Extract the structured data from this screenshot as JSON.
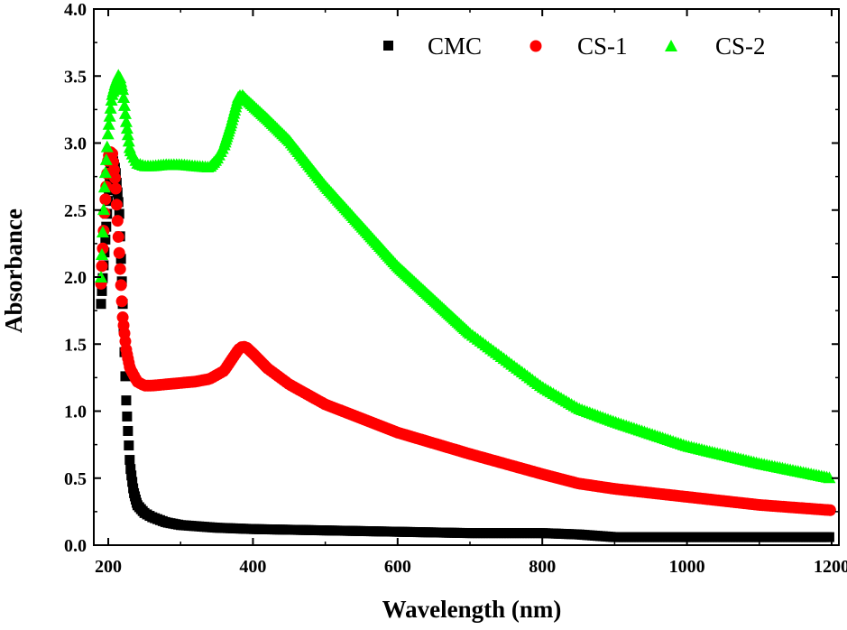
{
  "chart_data": {
    "type": "scatter",
    "title": "",
    "xlabel": "Wavelength (nm)",
    "ylabel": "Absorbance",
    "xlim": [
      180,
      1210
    ],
    "ylim": [
      0,
      4.0
    ],
    "x_ticks": [
      200,
      400,
      600,
      800,
      1000,
      1200
    ],
    "x_tick_labels": [
      "200",
      "400",
      "600",
      "800",
      "1000",
      "1200"
    ],
    "y_ticks": [
      0,
      0.5,
      1.0,
      1.5,
      2.0,
      2.5,
      3.0,
      3.5,
      4.0
    ],
    "y_tick_labels": [
      "0.0",
      "0.5",
      "1.0",
      "1.5",
      "2.0",
      "2.5",
      "3.0",
      "3.5",
      "4.0"
    ],
    "legend_position": "top-right",
    "grid": false,
    "series": [
      {
        "name": "CMC",
        "marker": "square",
        "color": "#000000",
        "x": [
          190,
          195,
          200,
          205,
          210,
          215,
          220,
          225,
          230,
          235,
          240,
          250,
          260,
          280,
          300,
          350,
          400,
          500,
          600,
          700,
          800,
          850,
          900,
          1000,
          1100,
          1200
        ],
        "y": [
          1.8,
          2.2,
          2.6,
          2.9,
          2.8,
          2.5,
          1.8,
          1.05,
          0.6,
          0.4,
          0.3,
          0.24,
          0.21,
          0.17,
          0.15,
          0.13,
          0.12,
          0.11,
          0.1,
          0.09,
          0.09,
          0.08,
          0.06,
          0.06,
          0.06,
          0.06
        ]
      },
      {
        "name": "CS-1",
        "marker": "circle",
        "color": "#ff0000",
        "x": [
          190,
          195,
          200,
          205,
          210,
          215,
          220,
          225,
          230,
          240,
          250,
          260,
          280,
          300,
          320,
          340,
          360,
          370,
          380,
          385,
          390,
          400,
          420,
          450,
          500,
          600,
          700,
          800,
          850,
          900,
          1000,
          1100,
          1200
        ],
        "y": [
          1.95,
          2.5,
          2.9,
          2.95,
          2.7,
          2.2,
          1.7,
          1.45,
          1.32,
          1.22,
          1.19,
          1.19,
          1.2,
          1.21,
          1.22,
          1.24,
          1.3,
          1.38,
          1.46,
          1.48,
          1.48,
          1.43,
          1.32,
          1.2,
          1.05,
          0.84,
          0.68,
          0.53,
          0.46,
          0.42,
          0.36,
          0.3,
          0.26
        ]
      },
      {
        "name": "CS-2",
        "marker": "triangle",
        "color": "#00ff00",
        "x": [
          190,
          195,
          200,
          205,
          210,
          215,
          220,
          225,
          230,
          240,
          250,
          260,
          280,
          300,
          320,
          340,
          350,
          360,
          370,
          380,
          385,
          390,
          400,
          420,
          450,
          500,
          600,
          700,
          800,
          850,
          900,
          1000,
          1100,
          1200
        ],
        "y": [
          2.0,
          2.7,
          3.1,
          3.35,
          3.45,
          3.52,
          3.4,
          3.15,
          2.95,
          2.85,
          2.83,
          2.83,
          2.84,
          2.84,
          2.83,
          2.82,
          2.88,
          2.98,
          3.15,
          3.35,
          3.36,
          3.33,
          3.28,
          3.18,
          3.02,
          2.68,
          2.08,
          1.58,
          1.18,
          1.02,
          0.92,
          0.74,
          0.61,
          0.5
        ]
      }
    ]
  }
}
